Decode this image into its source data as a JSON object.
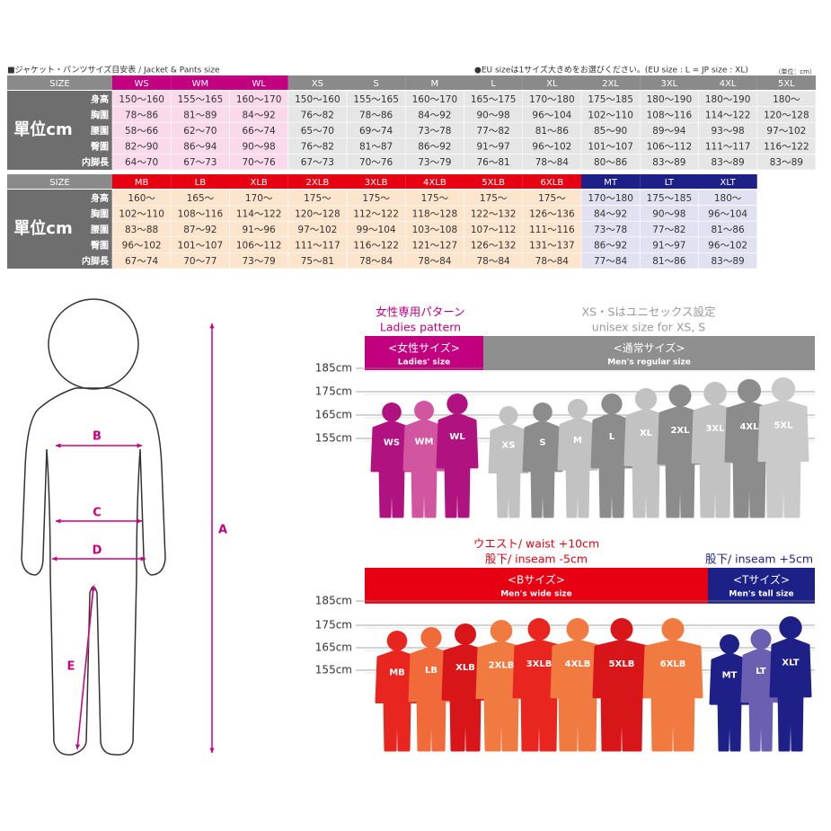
{
  "header": {
    "title": "■ジャケット・パンツサイズ目安表 / Jacket & Pants size",
    "note": "●EU sizeは1サイズ大きめをお選びください。(EU size : L = JP size : XL)",
    "unit": "（単位：cm）"
  },
  "tables": [
    {
      "size_label": "SIZE",
      "unit_label": "單位cm",
      "row_labels": [
        "身高",
        "胸圍",
        "腰圍",
        "臀圍",
        "内脚長"
      ],
      "columns": [
        "WS",
        "WM",
        "WL",
        "XS",
        "S",
        "M",
        "L",
        "XL",
        "2XL",
        "3XL",
        "4XL",
        "5XL"
      ],
      "rows": [
        [
          "150～160",
          "155～165",
          "160～170",
          "150～160",
          "155～165",
          "160～170",
          "165～175",
          "170～180",
          "175～185",
          "180～190",
          "180～190",
          "180～"
        ],
        [
          "78～86",
          "81～89",
          "84～92",
          "76～82",
          "78～86",
          "84～92",
          "90～98",
          "96～104",
          "102～110",
          "108～116",
          "114～122",
          "120～128"
        ],
        [
          "58～66",
          "62～70",
          "66～74",
          "65～70",
          "69～74",
          "73～78",
          "77～82",
          "81～86",
          "85～90",
          "89～94",
          "93～98",
          "97～102"
        ],
        [
          "82～90",
          "86～94",
          "90～98",
          "76～82",
          "81～87",
          "86～92",
          "91～97",
          "96～102",
          "101～107",
          "106～112",
          "111～117",
          "116～122"
        ],
        [
          "64～70",
          "67～73",
          "70～76",
          "67～73",
          "70～76",
          "73～79",
          "76～81",
          "78～84",
          "80～86",
          "83～89",
          "83～89",
          "83～89"
        ]
      ]
    },
    {
      "size_label": "SIZE",
      "unit_label": "單位cm",
      "row_labels": [
        "身高",
        "胸圍",
        "腰圍",
        "臀圍",
        "内脚長"
      ],
      "columns": [
        "MB",
        "LB",
        "XLB",
        "2XLB",
        "3XLB",
        "4XLB",
        "5XLB",
        "6XLB",
        "MT",
        "LT",
        "XLT"
      ],
      "rows": [
        [
          "160～",
          "165～",
          "170～",
          "175～",
          "175～",
          "175～",
          "175～",
          "175～",
          "170～180",
          "175～185",
          "180～"
        ],
        [
          "102～110",
          "108～116",
          "114～122",
          "120～128",
          "112～122",
          "118～128",
          "122～132",
          "126～136",
          "84～92",
          "90～98",
          "96～104"
        ],
        [
          "83～88",
          "87～92",
          "91～96",
          "97～102",
          "99～104",
          "103～108",
          "107～112",
          "111～116",
          "73～78",
          "77～82",
          "81～86"
        ],
        [
          "96～102",
          "101～107",
          "106～112",
          "111～117",
          "116～122",
          "121～127",
          "126～132",
          "131～137",
          "86～92",
          "91～97",
          "96～102"
        ],
        [
          "67～74",
          "70～77",
          "73～79",
          "75～81",
          "78～84",
          "78～84",
          "78～84",
          "78～84",
          "77～84",
          "81～86",
          "83～89"
        ]
      ]
    }
  ],
  "diagram_labels": [
    "A",
    "B",
    "C",
    "D",
    "E"
  ],
  "panels": [
    {
      "notes": [
        {
          "lines": [
            "女性専用パターン",
            "Ladies pattern"
          ]
        },
        {
          "lines": [
            "XS・Sはユニセックス設定",
            "unisex size for XS, S"
          ]
        }
      ],
      "bars": [
        {
          "title": "<女性サイズ>",
          "subtitle": "Ladies' size"
        },
        {
          "title": "<通常サイズ>",
          "subtitle": "Men's regular size"
        }
      ],
      "heights": [
        "185cm",
        "175cm",
        "165cm",
        "155cm"
      ],
      "figures": [
        "WS",
        "WM",
        "WL",
        "XS",
        "S",
        "M",
        "L",
        "XL",
        "2XL",
        "3XL",
        "4XL",
        "5XL"
      ]
    },
    {
      "notes": [
        {
          "lines": [
            "ウエスト/ waist +10cm",
            "股下/ inseam -5cm"
          ]
        },
        {
          "lines": [
            "股下/ inseam +5cm"
          ]
        }
      ],
      "bars": [
        {
          "title": "<Bサイズ>",
          "subtitle": "Men's wide size"
        },
        {
          "title": "<Tサイズ>",
          "subtitle": "Men's tall size"
        }
      ],
      "heights": [
        "185cm",
        "175cm",
        "165cm",
        "155cm"
      ],
      "figures": [
        "MB",
        "LB",
        "XLB",
        "2XLB",
        "3XLB",
        "4XLB",
        "5XLB",
        "6XLB",
        "MT",
        "LT",
        "XLT"
      ]
    }
  ]
}
